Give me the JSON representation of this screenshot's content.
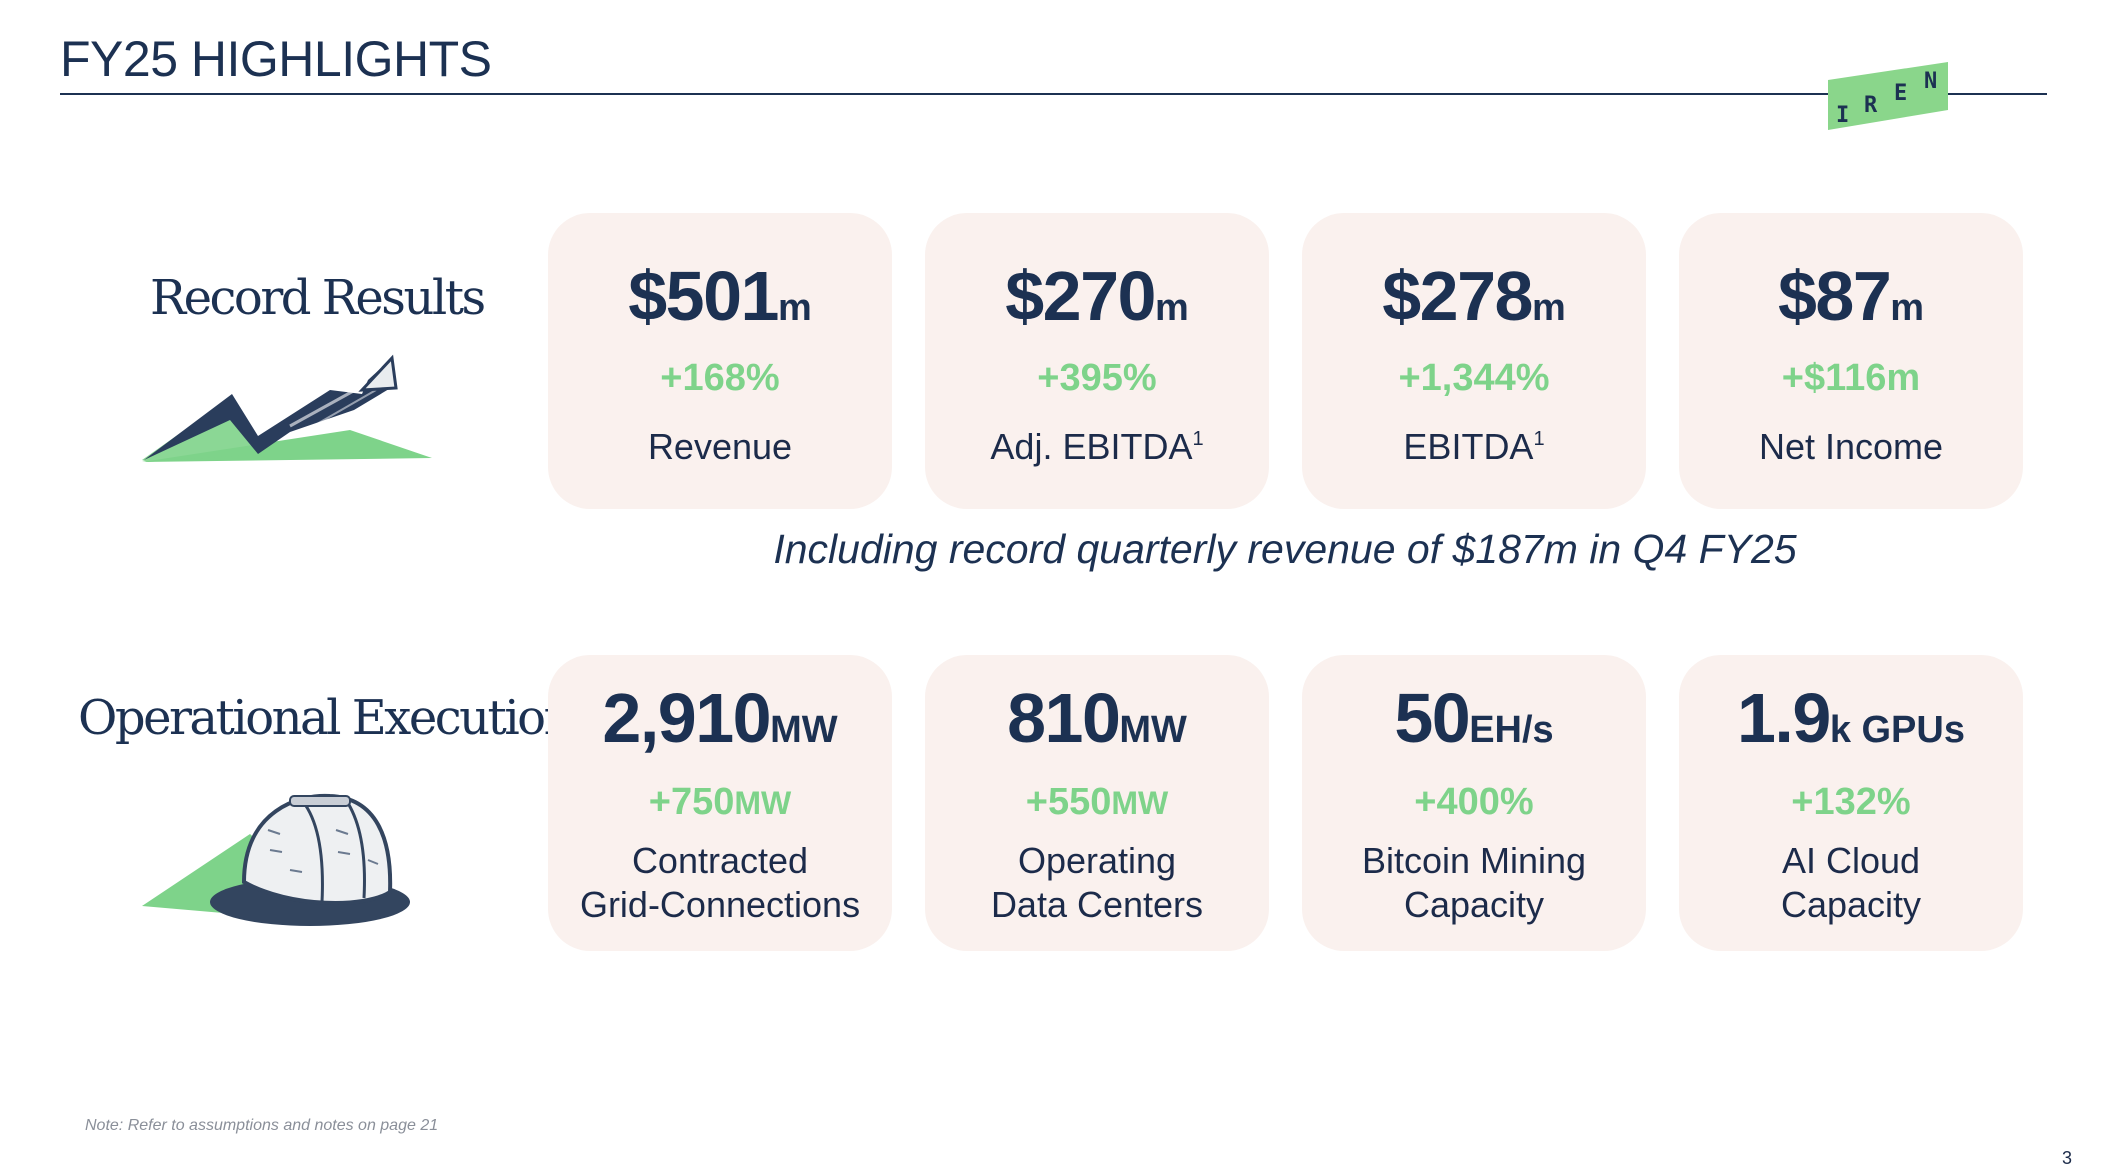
{
  "title": "FY25 HIGHLIGHTS",
  "logo": {
    "letters": [
      "I",
      "R",
      "E",
      "N"
    ],
    "color": "#8ad68b"
  },
  "sections": {
    "results_label": "Record Results",
    "operations_label": "Operational Execution"
  },
  "results": [
    {
      "value": "$501",
      "unit": "m",
      "delta": "+168%",
      "delta_unit": "",
      "label": "Revenue",
      "sup": ""
    },
    {
      "value": "$270",
      "unit": "m",
      "delta": "+395%",
      "delta_unit": "",
      "label": "Adj. EBITDA",
      "sup": "1"
    },
    {
      "value": "$278",
      "unit": "m",
      "delta": "+1,344%",
      "delta_unit": "",
      "label": "EBITDA",
      "sup": "1"
    },
    {
      "value": "$87",
      "unit": "m",
      "delta": "+$116m",
      "delta_unit": "",
      "label": "Net Income",
      "sup": ""
    }
  ],
  "subline": "Including record quarterly revenue of $187m in Q4 FY25",
  "operations": [
    {
      "value": "2,910",
      "unit": "MW",
      "delta": "+750",
      "delta_unit": "MW",
      "label_line1": "Contracted",
      "label_line2": "Grid-Connections"
    },
    {
      "value": "810",
      "unit": "MW",
      "delta": "+550",
      "delta_unit": "MW",
      "label_line1": "Operating",
      "label_line2": "Data Centers"
    },
    {
      "value": "50",
      "unit": "EH/s",
      "delta": "+400%",
      "delta_unit": "",
      "label_line1": "Bitcoin Mining",
      "label_line2": "Capacity"
    },
    {
      "value": "1.9",
      "unit": "k GPUs",
      "delta": "+132%",
      "delta_unit": "",
      "label_line1": "AI Cloud",
      "label_line2": "Capacity"
    }
  ],
  "note": "Note: Refer to assumptions and notes on page 21",
  "page_number": "3",
  "colors": {
    "navy": "#1c3152",
    "green": "#7ed38a",
    "card": "#faf1ee"
  },
  "icons": {
    "results": "trend-arrow-icon",
    "operations": "hard-hat-icon"
  }
}
